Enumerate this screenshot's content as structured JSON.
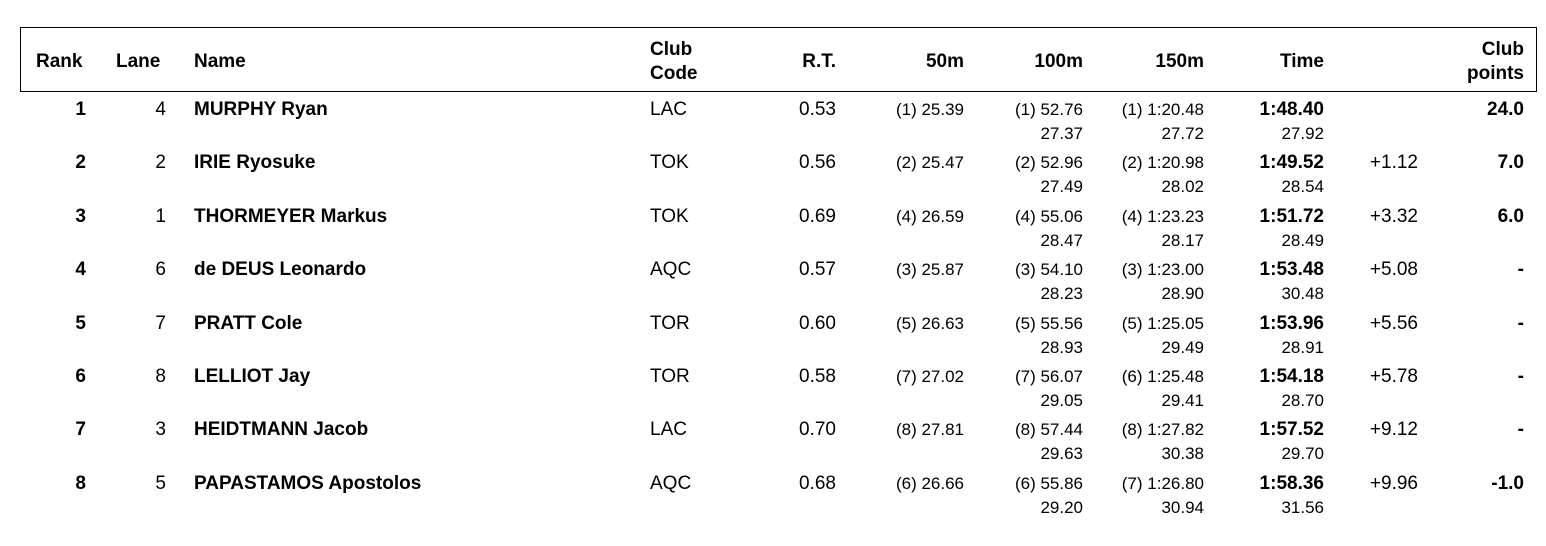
{
  "headers": {
    "rank": "Rank",
    "lane": "Lane",
    "name": "Name",
    "club_code_1": "Club",
    "club_code_2": "Code",
    "rt": "R.T.",
    "split50": "50m",
    "split100": "100m",
    "split150": "150m",
    "time": "Time",
    "club_points_1": "Club",
    "club_points_2": "points"
  },
  "rows": [
    {
      "rank": "1",
      "lane": "4",
      "name": "MURPHY Ryan",
      "club": "LAC",
      "rt": "0.53",
      "s50": "(1) 25.39",
      "s100": "(1) 52.76",
      "s100_lap": "27.37",
      "s150": "(1) 1:20.48",
      "s150_lap": "27.72",
      "time": "1:48.40",
      "time_lap": "27.92",
      "behind": "",
      "points": "24.0"
    },
    {
      "rank": "2",
      "lane": "2",
      "name": "IRIE Ryosuke",
      "club": "TOK",
      "rt": "0.56",
      "s50": "(2) 25.47",
      "s100": "(2) 52.96",
      "s100_lap": "27.49",
      "s150": "(2) 1:20.98",
      "s150_lap": "28.02",
      "time": "1:49.52",
      "time_lap": "28.54",
      "behind": "+1.12",
      "points": "7.0"
    },
    {
      "rank": "3",
      "lane": "1",
      "name": "THORMEYER Markus",
      "club": "TOK",
      "rt": "0.69",
      "s50": "(4) 26.59",
      "s100": "(4) 55.06",
      "s100_lap": "28.47",
      "s150": "(4) 1:23.23",
      "s150_lap": "28.17",
      "time": "1:51.72",
      "time_lap": "28.49",
      "behind": "+3.32",
      "points": "6.0"
    },
    {
      "rank": "4",
      "lane": "6",
      "name": "de DEUS Leonardo",
      "club": "AQC",
      "rt": "0.57",
      "s50": "(3) 25.87",
      "s100": "(3) 54.10",
      "s100_lap": "28.23",
      "s150": "(3) 1:23.00",
      "s150_lap": "28.90",
      "time": "1:53.48",
      "time_lap": "30.48",
      "behind": "+5.08",
      "points": "-"
    },
    {
      "rank": "5",
      "lane": "7",
      "name": "PRATT Cole",
      "club": "TOR",
      "rt": "0.60",
      "s50": "(5) 26.63",
      "s100": "(5) 55.56",
      "s100_lap": "28.93",
      "s150": "(5) 1:25.05",
      "s150_lap": "29.49",
      "time": "1:53.96",
      "time_lap": "28.91",
      "behind": "+5.56",
      "points": "-"
    },
    {
      "rank": "6",
      "lane": "8",
      "name": "LELLIOT Jay",
      "club": "TOR",
      "rt": "0.58",
      "s50": "(7) 27.02",
      "s100": "(7) 56.07",
      "s100_lap": "29.05",
      "s150": "(6) 1:25.48",
      "s150_lap": "29.41",
      "time": "1:54.18",
      "time_lap": "28.70",
      "behind": "+5.78",
      "points": "-"
    },
    {
      "rank": "7",
      "lane": "3",
      "name": "HEIDTMANN Jacob",
      "club": "LAC",
      "rt": "0.70",
      "s50": "(8) 27.81",
      "s100": "(8) 57.44",
      "s100_lap": "29.63",
      "s150": "(8) 1:27.82",
      "s150_lap": "30.38",
      "time": "1:57.52",
      "time_lap": "29.70",
      "behind": "+9.12",
      "points": "-"
    },
    {
      "rank": "8",
      "lane": "5",
      "name": "PAPASTAMOS Apostolos",
      "club": "AQC",
      "rt": "0.68",
      "s50": "(6) 26.66",
      "s100": "(6) 55.86",
      "s100_lap": "29.20",
      "s150": "(7) 1:26.80",
      "s150_lap": "30.94",
      "time": "1:58.36",
      "time_lap": "31.56",
      "behind": "+9.96",
      "points": "-1.0"
    }
  ]
}
